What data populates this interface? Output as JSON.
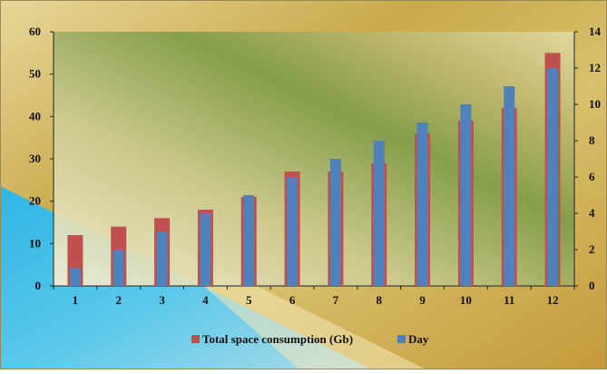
{
  "chart_data": {
    "type": "bar",
    "title": "",
    "xlabel": "",
    "categories": [
      "1",
      "2",
      "3",
      "4",
      "5",
      "6",
      "7",
      "8",
      "9",
      "10",
      "11",
      "12"
    ],
    "series": [
      {
        "name": "Total space consumption (Gb)",
        "axis": "left",
        "color": "#c0504d",
        "values": [
          12,
          14,
          16,
          18,
          21,
          27,
          27,
          29,
          36,
          39,
          42,
          55
        ]
      },
      {
        "name": "Day",
        "axis": "right",
        "color": "#4f81bd",
        "values": [
          1,
          2,
          3,
          4,
          5,
          6,
          7,
          8,
          9,
          10,
          11,
          12
        ]
      }
    ],
    "y_left": {
      "lim": [
        0,
        60
      ],
      "ticks": [
        "0",
        "10",
        "20",
        "30",
        "40",
        "50",
        "60"
      ]
    },
    "y_right": {
      "lim": [
        0,
        14
      ],
      "ticks": [
        "0",
        "2",
        "4",
        "6",
        "8",
        "10",
        "12",
        "14"
      ]
    },
    "grid": false,
    "legend_position": "bottom",
    "background": "gradient (gold / olive green / sky blue)"
  }
}
